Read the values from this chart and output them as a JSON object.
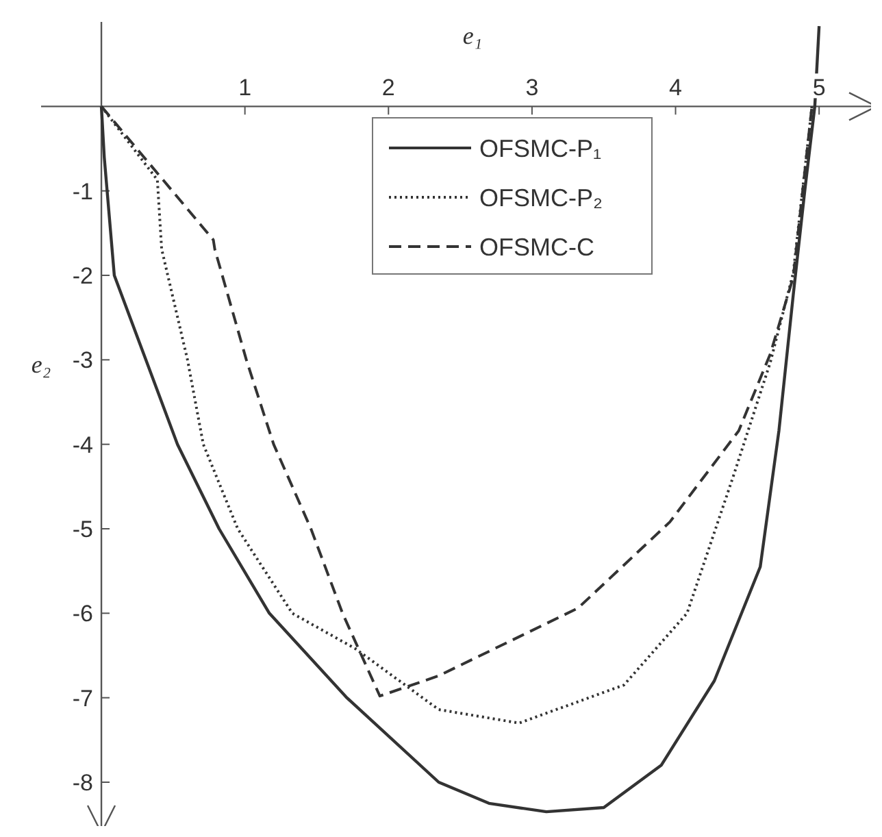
{
  "chart_data": {
    "type": "line",
    "xlabel": "e₁",
    "ylabel": "e₂",
    "xlim": [
      -0.42,
      5.4
    ],
    "ylim": [
      -8.6,
      1.0
    ],
    "xticks": [
      1,
      2,
      3,
      4,
      5
    ],
    "yticks": [
      -1,
      -2,
      -3,
      -4,
      -5,
      -6,
      -7,
      -8
    ],
    "legend": "top",
    "grid": false,
    "marker": "none",
    "series": [
      {
        "name": "OFSMC-P₁",
        "color": "#333333",
        "line_style": "solid",
        "x": [
          0,
          0.02,
          0.04,
          0.09,
          0.31,
          0.53,
          0.82,
          1.17,
          1.71,
          2.35,
          2.7,
          3.1,
          3.5,
          3.9,
          4.27,
          4.59,
          4.72,
          4.82,
          4.9,
          4.97,
          5.0
        ],
        "values": [
          0,
          -0.6,
          -1,
          -2,
          -3,
          -4,
          -5,
          -6,
          -7,
          -8,
          -8.25,
          -8.35,
          -8.3,
          -7.8,
          -6.8,
          -5.45,
          -3.84,
          -2.23,
          -1,
          0,
          0.95
        ]
      },
      {
        "name": "OFSMC-P₂",
        "color": "#333333",
        "line_style": "dotted",
        "x": [
          0,
          0.39,
          0.42,
          0.6,
          0.71,
          0.95,
          1.33,
          1.77,
          2.35,
          2.91,
          3.64,
          4.08,
          4.4,
          4.66,
          4.82,
          4.95
        ],
        "values": [
          0,
          -0.87,
          -1.69,
          -3,
          -4,
          -5,
          -6,
          -6.42,
          -7.14,
          -7.3,
          -6.85,
          -6.0,
          -4.39,
          -3.03,
          -1.97,
          0
        ]
      },
      {
        "name": "OFSMC-C",
        "color": "#333333",
        "line_style": "dashed",
        "x": [
          0,
          0.78,
          0.79,
          1.01,
          1.2,
          1.46,
          1.68,
          1.94,
          2.35,
          3.32,
          3.96,
          4.44,
          4.66,
          4.82,
          4.95
        ],
        "values": [
          0,
          -1.58,
          -1.69,
          -3,
          -4,
          -5,
          -6,
          -6.98,
          -6.74,
          -5.94,
          -4.92,
          -3.84,
          -2.93,
          -2.02,
          0
        ]
      }
    ]
  }
}
